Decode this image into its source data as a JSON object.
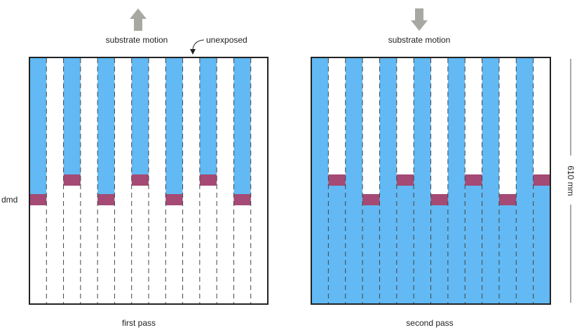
{
  "labels": {
    "motion_left": "substrate motion",
    "motion_right": "substrate motion",
    "unexposed": "unexposed",
    "dmd": "dmd",
    "dimension": "610 mm",
    "caption_left": "first pass",
    "caption_right": "second pass"
  },
  "icons": {
    "arrow_up": "arrow-up-icon",
    "arrow_down": "arrow-down-icon",
    "pointer": "curved-pointer-arrow-icon"
  },
  "colors": {
    "exposed": "#62b9f3",
    "dmd_pad": "#a54a74",
    "outline": "#222222",
    "motion_arrow": "#a8a8a2",
    "dashed_line": "#444444",
    "background": "#ffffff"
  },
  "panels": {
    "first_pass": {
      "columns": 14,
      "exposed_columns": [
        0,
        2,
        4,
        6,
        8,
        10,
        12
      ],
      "exposed_region": "above dmd pads",
      "dmd_pads": [
        {
          "column": 0,
          "row": "low"
        },
        {
          "column": 2,
          "row": "high"
        },
        {
          "column": 4,
          "row": "low"
        },
        {
          "column": 6,
          "row": "high"
        },
        {
          "column": 8,
          "row": "low"
        },
        {
          "column": 10,
          "row": "high"
        },
        {
          "column": 12,
          "row": "low"
        }
      ]
    },
    "second_pass": {
      "columns": 14,
      "exposed_columns": [
        0,
        2,
        4,
        6,
        8,
        10,
        12
      ],
      "exposed_region": "full height for exposed columns, below dmd pads for others",
      "dmd_pads": [
        {
          "column": 1,
          "row": "high"
        },
        {
          "column": 3,
          "row": "low"
        },
        {
          "column": 5,
          "row": "high"
        },
        {
          "column": 7,
          "row": "low"
        },
        {
          "column": 9,
          "row": "high"
        },
        {
          "column": 11,
          "row": "low"
        },
        {
          "column": 13,
          "row": "high"
        }
      ]
    }
  }
}
